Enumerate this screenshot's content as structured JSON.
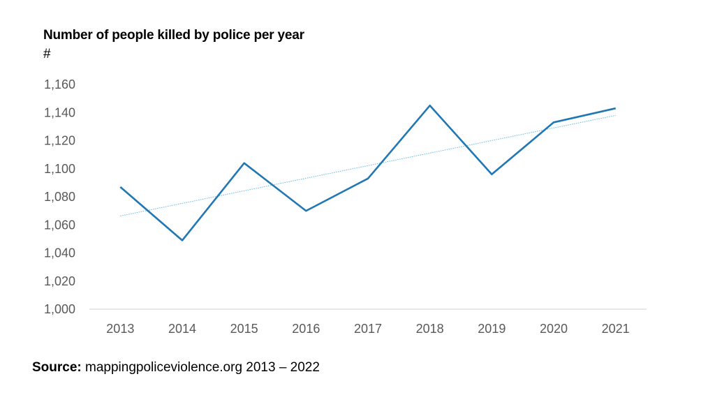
{
  "chart_data": {
    "type": "line",
    "title": "Number of people killed by police per year",
    "ylabel": "#",
    "categories": [
      "2013",
      "2014",
      "2015",
      "2016",
      "2017",
      "2018",
      "2019",
      "2020",
      "2021"
    ],
    "series": [
      {
        "values": [
          1087,
          1049,
          1104,
          1070,
          1093,
          1145,
          1096,
          1133,
          1143
        ]
      }
    ],
    "trendline": {
      "type": "linear",
      "values": [
        1066.4,
        1138.0
      ],
      "style": "dotted"
    },
    "ylim": [
      1000,
      1160
    ],
    "yticks": [
      1000,
      1020,
      1040,
      1060,
      1080,
      1100,
      1120,
      1140,
      1160
    ],
    "ytick_labels": [
      "1,000",
      "1,020",
      "1,040",
      "1,060",
      "1,080",
      "1,100",
      "1,120",
      "1,140",
      "1,160"
    ],
    "grid": false,
    "legend": "none",
    "colors": {
      "series": "#1F77B4",
      "trendline": "#5BB8E6",
      "axis": "#D9D9D9",
      "tick_text": "#595959"
    }
  },
  "source": {
    "label": "Source:",
    "text": " mappingpoliceviolence.org 2013 – 2022"
  }
}
